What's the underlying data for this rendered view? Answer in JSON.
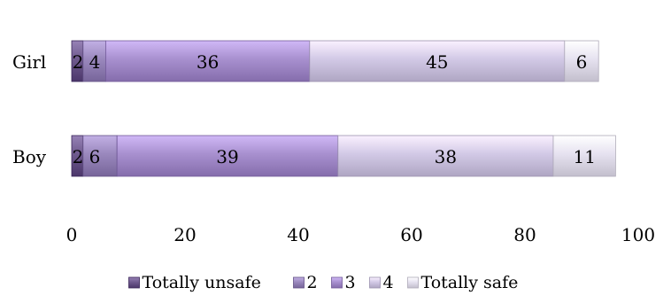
{
  "chart_data": {
    "type": "bar",
    "orientation": "horizontal",
    "stacked": true,
    "categories": [
      "Girl",
      "Boy"
    ],
    "series": [
      {
        "name": "Totally unsafe",
        "values": [
          2,
          2
        ],
        "color": "#6f5a8e",
        "labels": [
          "",
          ""
        ]
      },
      {
        "name": "2",
        "values": [
          4,
          6
        ],
        "color": "#9a88bd",
        "labels": [
          "2",
          "2"
        ]
      },
      {
        "name": "3",
        "values": [
          36,
          39
        ],
        "color": "#a890cf",
        "labels": [
          "4",
          "6"
        ]
      },
      {
        "name": "4",
        "values": [
          45,
          38
        ],
        "color": "#d2c9e6",
        "labels": [
          "36",
          "39"
        ]
      },
      {
        "name": "Totally safe",
        "values": [
          6,
          11
        ],
        "color": "#e6e2f0",
        "labels": [
          "45",
          "38"
        ]
      }
    ],
    "end_labels": [
      "6",
      "11"
    ],
    "xlim": [
      0,
      100
    ],
    "xticks": [
      "0",
      "20",
      "40",
      "60",
      "80",
      "100"
    ],
    "legend_position": "bottom",
    "grid": false
  }
}
